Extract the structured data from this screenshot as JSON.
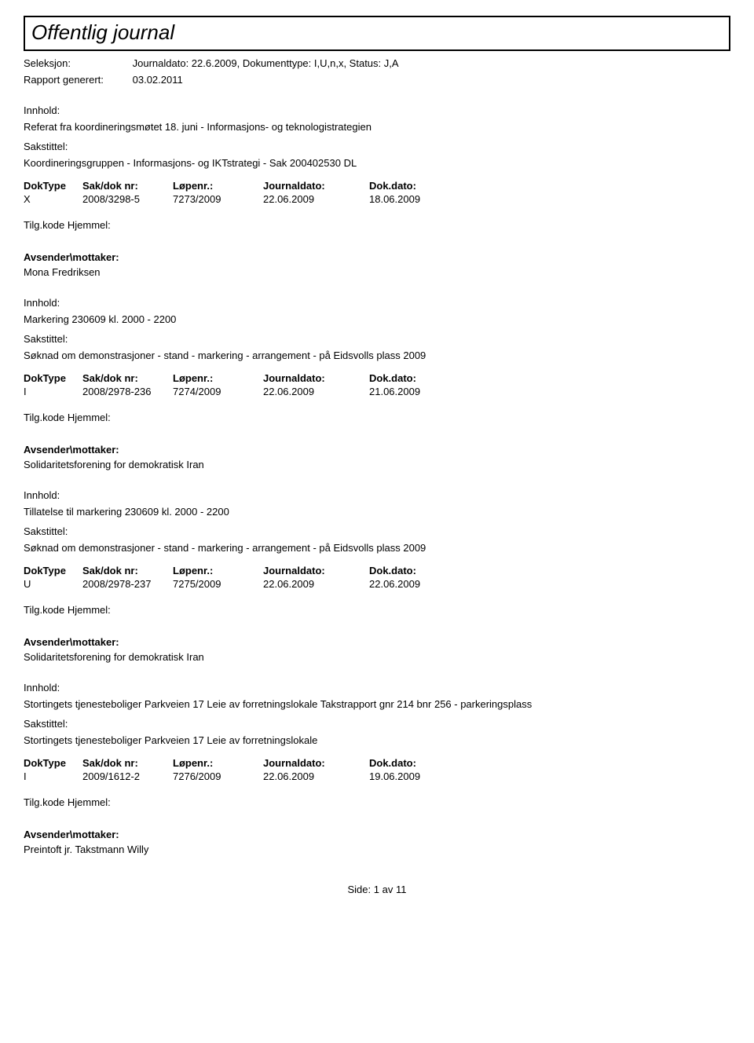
{
  "header": {
    "title": "Offentlig journal",
    "seleksjon_label": "Seleksjon:",
    "seleksjon_value": "Journaldato: 22.6.2009, Dokumenttype: I,U,n,x, Status: J,A",
    "rapport_label": "Rapport generert:",
    "rapport_value": "03.02.2011"
  },
  "labels": {
    "innhold": "Innhold:",
    "sakstittel": "Sakstittel:",
    "doktype": "DokType",
    "sakdok": "Sak/dok nr:",
    "lopenr": "Løpenr.:",
    "journaldato": "Journaldato:",
    "dokdato": "Dok.dato:",
    "tilgkode": "Tilg.kode Hjemmel:",
    "avsender": "Avsender\\mottaker:"
  },
  "entries": [
    {
      "innhold": "Referat fra koordineringsmøtet 18. juni - Informasjons- og teknologistrategien",
      "sakstittel": "Koordineringsgruppen - Informasjons- og IKTstrategi - Sak 200402530 DL",
      "doktype": "X",
      "sakdok": "2008/3298-5",
      "lopenr": "7273/2009",
      "journaldato": "22.06.2009",
      "dokdato": "18.06.2009",
      "avsender": "Mona Fredriksen"
    },
    {
      "innhold": "Markering 230609 kl. 2000 - 2200",
      "sakstittel": "Søknad om demonstrasjoner - stand - markering - arrangement - på Eidsvolls plass 2009",
      "doktype": "I",
      "sakdok": "2008/2978-236",
      "lopenr": "7274/2009",
      "journaldato": "22.06.2009",
      "dokdato": "21.06.2009",
      "avsender": "Solidaritetsforening for demokratisk Iran"
    },
    {
      "innhold": "Tillatelse til markering 230609 kl. 2000 - 2200",
      "sakstittel": "Søknad om demonstrasjoner - stand - markering - arrangement - på Eidsvolls plass 2009",
      "doktype": "U",
      "sakdok": "2008/2978-237",
      "lopenr": "7275/2009",
      "journaldato": "22.06.2009",
      "dokdato": "22.06.2009",
      "avsender": "Solidaritetsforening for demokratisk Iran"
    },
    {
      "innhold": "Stortingets tjenesteboliger Parkveien 17 Leie av forretningslokale Takstrapport gnr 214 bnr 256 - parkeringsplass",
      "sakstittel": "Stortingets tjenesteboliger Parkveien 17 Leie av forretningslokale",
      "doktype": "I",
      "sakdok": "2009/1612-2",
      "lopenr": "7276/2009",
      "journaldato": "22.06.2009",
      "dokdato": "19.06.2009",
      "avsender": "Preintoft jr. Takstmann Willy"
    }
  ],
  "footer": {
    "side_label": "Side:",
    "page_current": "1",
    "av_label": "av",
    "page_total": "11"
  }
}
